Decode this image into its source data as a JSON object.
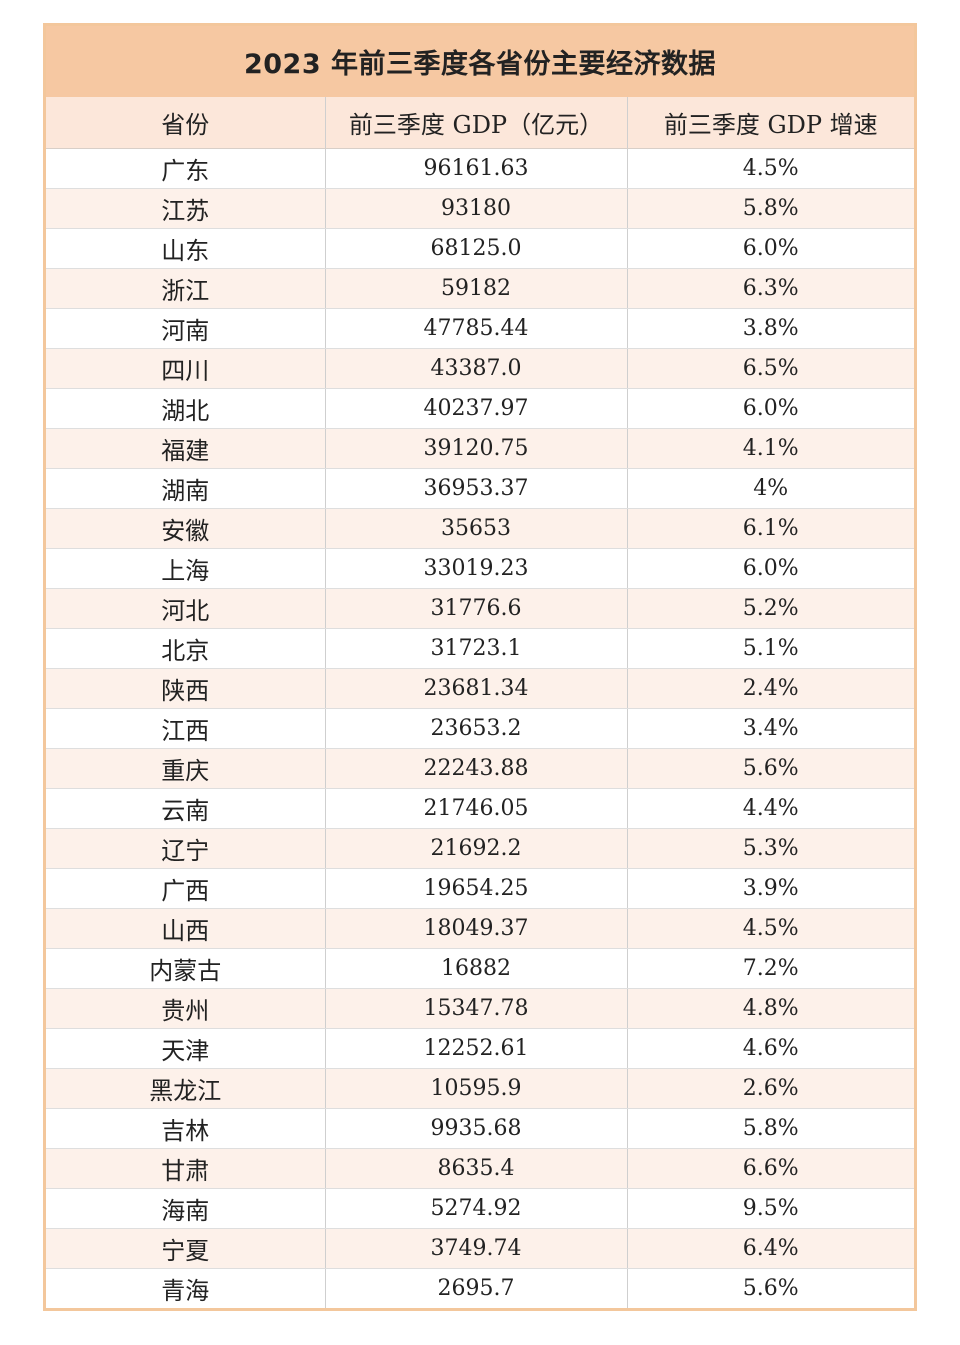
{
  "title": "2023 年前三季度各省份主要经济数据",
  "headers": [
    "省份",
    "前三季度 GDP（亿元）",
    "前三季度 GDP 增速"
  ],
  "rows": [
    [
      "广东",
      "96161.63",
      "4.5%"
    ],
    [
      "江苏",
      "93180",
      "5.8%"
    ],
    [
      "山东",
      "68125.0",
      "6.0%"
    ],
    [
      "浙江",
      "59182",
      "6.3%"
    ],
    [
      "河南",
      "47785.44",
      "3.8%"
    ],
    [
      "四川",
      "43387.0",
      "6.5%"
    ],
    [
      "湖北",
      "40237.97",
      "6.0%"
    ],
    [
      "福建",
      "39120.75",
      "4.1%"
    ],
    [
      "湖南",
      "36953.37",
      "4%"
    ],
    [
      "安徽",
      "35653",
      "6.1%"
    ],
    [
      "上海",
      "33019.23",
      "6.0%"
    ],
    [
      "河北",
      "31776.6",
      "5.2%"
    ],
    [
      "北京",
      "31723.1",
      "5.1%"
    ],
    [
      "陕西",
      "23681.34",
      "2.4%"
    ],
    [
      "江西",
      "23653.2",
      "3.4%"
    ],
    [
      "重庆",
      "22243.88",
      "5.6%"
    ],
    [
      "云南",
      "21746.05",
      "4.4%"
    ],
    [
      "辽宁",
      "21692.2",
      "5.3%"
    ],
    [
      "广西",
      "19654.25",
      "3.9%"
    ],
    [
      "山西",
      "18049.37",
      "4.5%"
    ],
    [
      "内蒙古",
      "16882",
      "7.2%"
    ],
    [
      "贵州",
      "15347.78",
      "4.8%"
    ],
    [
      "天津",
      "12252.61",
      "4.6%"
    ],
    [
      "黑龙江",
      "10595.9",
      "2.6%"
    ],
    [
      "吉林",
      "9935.68",
      "5.8%"
    ],
    [
      "甘肃",
      "8635.4",
      "6.6%"
    ],
    [
      "海南",
      "5274.92",
      "9.5%"
    ],
    [
      "宁夏",
      "3749.74",
      "6.4%"
    ],
    [
      "青海",
      "2695.7",
      "5.6%"
    ]
  ],
  "colors": {
    "border": "#f3c79c",
    "title_bg": "#f6c8a2",
    "header_bg": "#fce7da",
    "stripe_bg": "#fdf1ea"
  }
}
